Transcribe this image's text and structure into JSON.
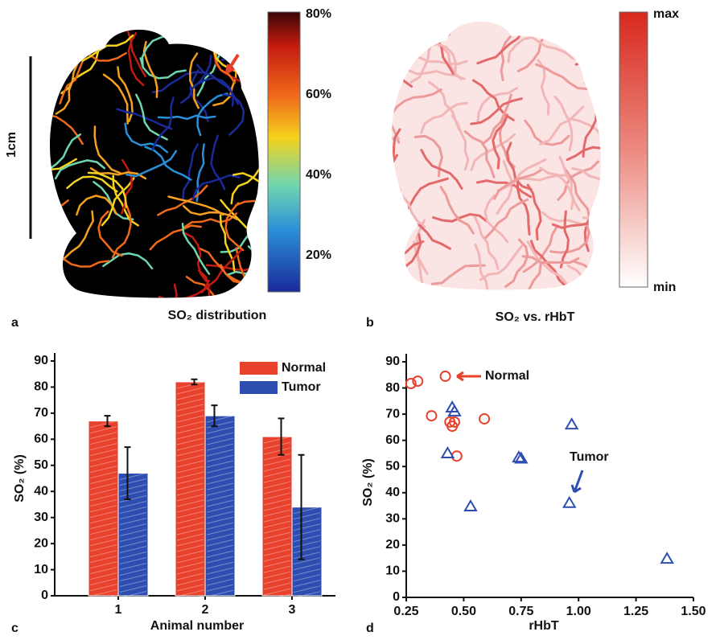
{
  "images": [
    {
      "panel": "a",
      "caption": "SO₂ distribution",
      "scale_bar": "1cm",
      "colorbar_labels": [
        "80%",
        "60%",
        "40%",
        "20%"
      ]
    },
    {
      "panel": "b",
      "caption": "SO₂ vs. rHbT",
      "colorbar_labels": [
        "max",
        "min"
      ]
    }
  ],
  "chart_data": [
    {
      "type": "bar",
      "panel": "c",
      "y_label": "SO₂ (%)",
      "x_label": "Animal number",
      "categories": [
        "1",
        "2",
        "3"
      ],
      "ylim": [
        0,
        90
      ],
      "yticks": [
        0,
        10,
        20,
        30,
        40,
        50,
        60,
        70,
        80,
        90
      ],
      "legend": "upper right",
      "series": [
        {
          "name": "Normal",
          "color": "#e8412c",
          "values": [
            67,
            82,
            61
          ],
          "errors": [
            2,
            1,
            7
          ]
        },
        {
          "name": "Tumor",
          "color": "#2d4eb0",
          "values": [
            47,
            69,
            34
          ],
          "errors": [
            10,
            4,
            20
          ]
        }
      ]
    },
    {
      "type": "scatter",
      "panel": "d",
      "y_label": "SO₂ (%)",
      "x_label": "rHbT",
      "xlim": [
        0.25,
        1.5
      ],
      "xticks": [
        {
          "value": 0.25,
          "label": "0.25"
        },
        {
          "value": 0.5,
          "label": "0.50"
        },
        {
          "value": 0.75,
          "label": "0.75"
        },
        {
          "value": 1.0,
          "label": "1.00"
        },
        {
          "value": 1.25,
          "label": "1.25"
        },
        {
          "value": 1.5,
          "label": "1.50"
        }
      ],
      "ylim": [
        0,
        90
      ],
      "yticks": [
        0,
        10,
        20,
        30,
        40,
        50,
        60,
        70,
        80,
        90
      ],
      "series": [
        {
          "name": "Normal",
          "color": "#e8412c",
          "marker": "circle",
          "x": [
            0.27,
            0.3,
            0.42,
            0.36,
            0.44,
            0.45,
            0.46,
            0.59,
            0.47
          ],
          "values": [
            81.7,
            82.6,
            84.5,
            69.4,
            67,
            65.4,
            67,
            68.2,
            54
          ]
        },
        {
          "name": "Tumor",
          "color": "#2d4eb0",
          "marker": "triangle",
          "x": [
            0.45,
            0.46,
            0.43,
            0.53,
            0.74,
            0.75,
            0.97,
            0.96,
            1.385
          ],
          "values": [
            72.5,
            71,
            55,
            34.7,
            53.4,
            53,
            66,
            36,
            14.7
          ]
        }
      ]
    }
  ]
}
